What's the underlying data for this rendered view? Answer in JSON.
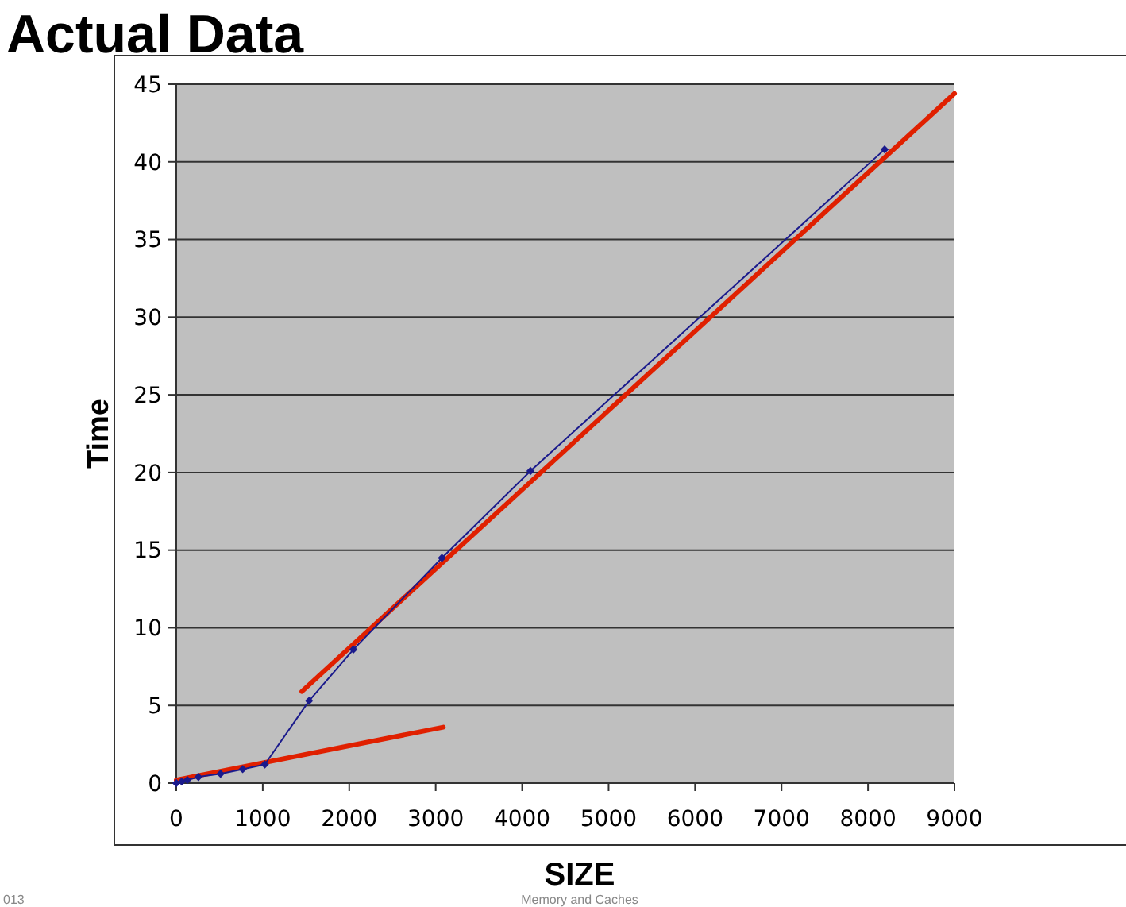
{
  "chart_data": {
    "type": "line",
    "title": "Actual Data",
    "xlabel": "SIZE",
    "ylabel": "Time",
    "xlim": [
      0,
      9000
    ],
    "xticks": [
      0,
      1000,
      2000,
      3000,
      4000,
      5000,
      6000,
      7000,
      8000,
      9000
    ],
    "ylim": [
      0,
      45
    ],
    "yticks": [
      0,
      5,
      10,
      15,
      20,
      25,
      30,
      35,
      40,
      45
    ],
    "grid": "y",
    "series": [
      {
        "color": "#1a1a8c",
        "marker": "diamond",
        "x": [
          0,
          64,
          128,
          256,
          512,
          768,
          1024,
          1536,
          2048,
          3072,
          4096,
          8192
        ],
        "values": [
          0,
          0.1,
          0.2,
          0.4,
          0.6,
          0.9,
          1.2,
          5.3,
          8.6,
          14.5,
          20.1,
          40.8
        ]
      },
      {
        "type": "line",
        "color": "#e02000",
        "marker": "none",
        "x": [
          0,
          3088
        ],
        "values": [
          0.2,
          3.6
        ]
      },
      {
        "type": "line",
        "color": "#e02000",
        "marker": "none",
        "x": [
          1452,
          9000
        ],
        "values": [
          5.9,
          44.4
        ]
      }
    ],
    "annotations": [
      "013",
      "Memory and Caches"
    ]
  }
}
